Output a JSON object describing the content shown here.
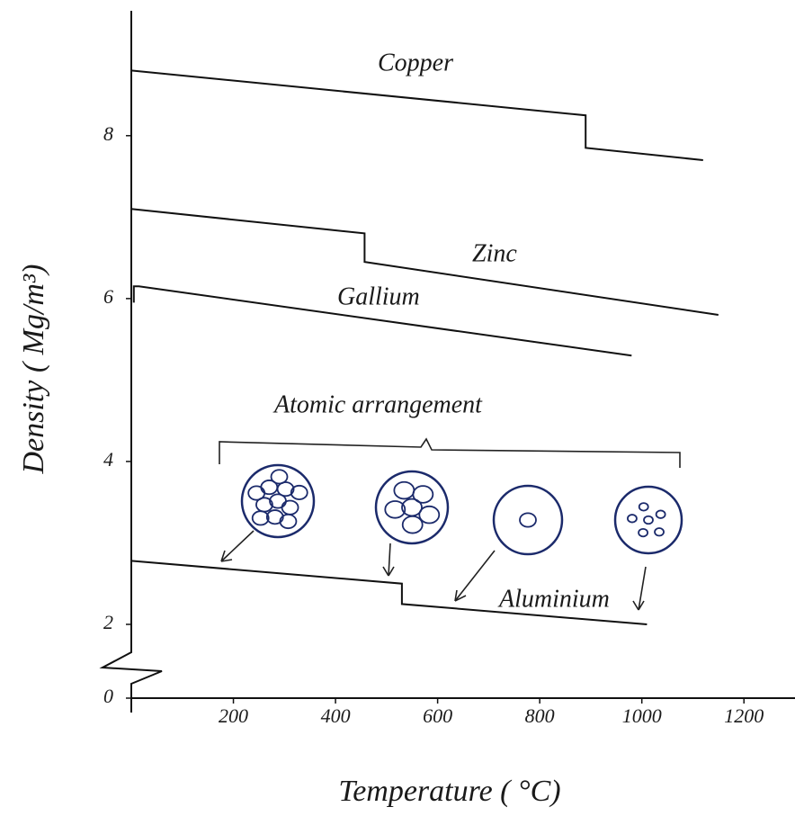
{
  "chart_data": {
    "type": "line",
    "x_label": "Temperature ( °C)",
    "y_label": "Density ( Mg/m³)",
    "annotations": [
      "Atomic arrangement"
    ],
    "xlim": [
      0,
      1300
    ],
    "ylim": [
      0,
      9.5
    ],
    "y_break": [
      0,
      2
    ],
    "xticks": [
      200,
      400,
      600,
      800,
      1000,
      1200
    ],
    "yticks": [
      0,
      2,
      4,
      6,
      8
    ],
    "grid": false,
    "series": [
      {
        "name": "Copper",
        "color": "#111111",
        "x": [
          0,
          890,
          890,
          1120
        ],
        "values": [
          8.8,
          8.25,
          7.85,
          7.7
        ]
      },
      {
        "name": "Zinc",
        "color": "#111111",
        "x": [
          0,
          457,
          457,
          1150
        ],
        "values": [
          7.1,
          6.8,
          6.45,
          5.8
        ]
      },
      {
        "name": "Gallium",
        "color": "#111111",
        "x": [
          5,
          5,
          15,
          980
        ],
        "values": [
          5.95,
          6.15,
          6.15,
          5.3
        ]
      },
      {
        "name": "Aluminium",
        "color": "#111111",
        "x": [
          0,
          530,
          530,
          1010
        ],
        "values": [
          2.78,
          2.5,
          2.25,
          2.0
        ]
      }
    ]
  }
}
